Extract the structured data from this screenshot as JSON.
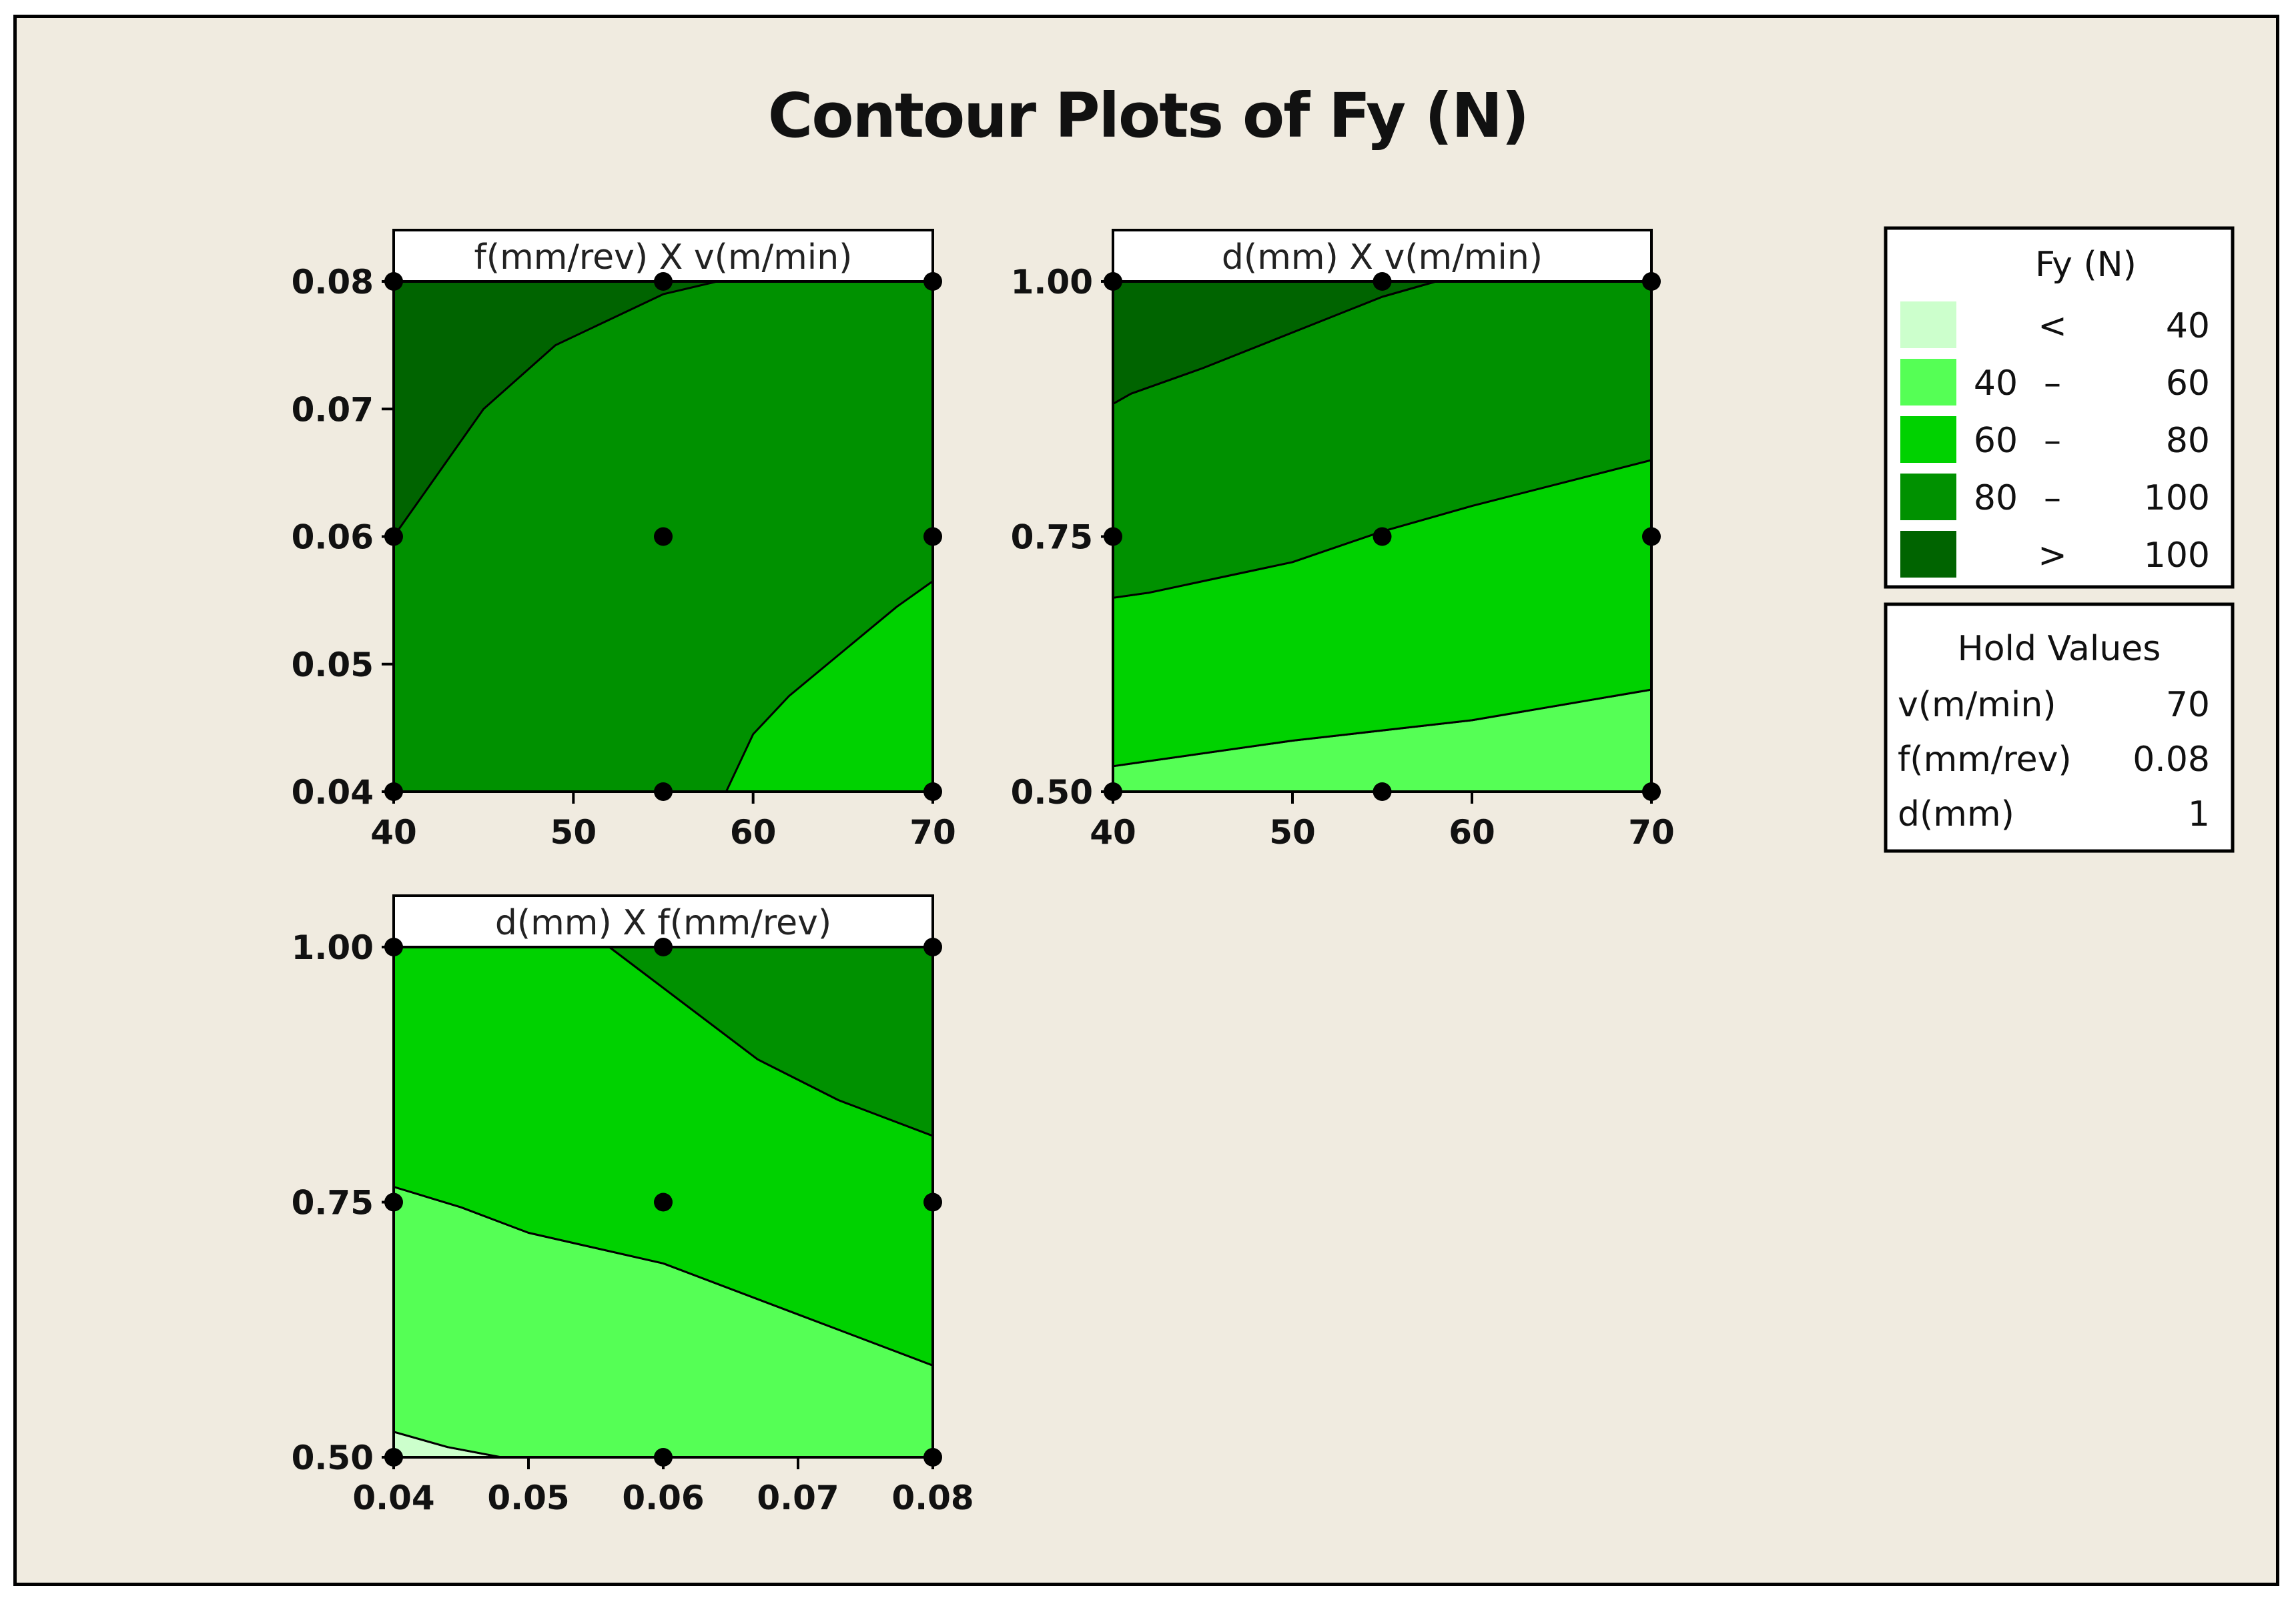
{
  "chart_title": "Contour Plots of Fy (N)",
  "colors": {
    "lt40": "#ccffcc",
    "40-60": "#55ff55",
    "60-80": "#00d200",
    "80-100": "#009100",
    "gt100": "#006400"
  },
  "legend": {
    "title": "Fy (N)",
    "levels": [
      {
        "lo": "",
        "sep": "<",
        "hi": "40",
        "color_key": "lt40"
      },
      {
        "lo": "40",
        "sep": "–",
        "hi": "60",
        "color_key": "40-60"
      },
      {
        "lo": "60",
        "sep": "–",
        "hi": "80",
        "color_key": "60-80"
      },
      {
        "lo": "80",
        "sep": "–",
        "hi": "100",
        "color_key": "80-100"
      },
      {
        "lo": "",
        "sep": ">",
        "hi": "100",
        "color_key": "gt100"
      }
    ]
  },
  "hold_values": {
    "title": "Hold Values",
    "rows": [
      {
        "name": "v(m/min)",
        "value": "70"
      },
      {
        "name": "f(mm/rev)",
        "value": "0.08"
      },
      {
        "name": "d(mm)",
        "value": "1"
      }
    ]
  },
  "chart_data": [
    {
      "type": "contour",
      "title": "f(mm/rev) X v(m/min)",
      "x_ticks": [
        "40",
        "50",
        "60",
        "70"
      ],
      "y_ticks": [
        "0.04",
        "0.05",
        "0.06",
        "0.07",
        "0.08"
      ],
      "xlim": [
        40,
        70
      ],
      "ylim": [
        0.04,
        0.08
      ],
      "design_points": [
        [
          40,
          0.08
        ],
        [
          55,
          0.08
        ],
        [
          70,
          0.08
        ],
        [
          40,
          0.06
        ],
        [
          55,
          0.06
        ],
        [
          70,
          0.06
        ],
        [
          40,
          0.04
        ],
        [
          55,
          0.04
        ],
        [
          70,
          0.04
        ]
      ],
      "regions": [
        {
          "level": "80-100",
          "points": [
            [
              40,
              0.04
            ],
            [
              70,
              0.04
            ],
            [
              70,
              0.08
            ],
            [
              40,
              0.08
            ]
          ]
        },
        {
          "level": "gt100",
          "points": [
            [
              40,
              0.08
            ],
            [
              58,
              0.08
            ],
            [
              55,
              0.079
            ],
            [
              52,
              0.077
            ],
            [
              49,
              0.075
            ],
            [
              45,
              0.07
            ],
            [
              41,
              0.062
            ],
            [
              40,
              0.06
            ]
          ]
        },
        {
          "level": "60-80",
          "points": [
            [
              58.5,
              0.04
            ],
            [
              70,
              0.04
            ],
            [
              70,
              0.0565
            ],
            [
              68,
              0.0545
            ],
            [
              65,
              0.051
            ],
            [
              62,
              0.0475
            ],
            [
              60,
              0.0445
            ]
          ]
        }
      ]
    },
    {
      "type": "contour",
      "title": "d(mm)  X v(m/min)",
      "x_ticks": [
        "40",
        "50",
        "60",
        "70"
      ],
      "y_ticks": [
        "0.50",
        "0.75",
        "1.00"
      ],
      "xlim": [
        40,
        70
      ],
      "ylim": [
        0.5,
        1.0
      ],
      "design_points": [
        [
          40,
          1.0
        ],
        [
          55,
          1.0
        ],
        [
          70,
          1.0
        ],
        [
          40,
          0.75
        ],
        [
          55,
          0.75
        ],
        [
          70,
          0.75
        ],
        [
          40,
          0.5
        ],
        [
          55,
          0.5
        ],
        [
          70,
          0.5
        ]
      ],
      "regions": [
        {
          "level": "40-60",
          "points": [
            [
              40,
              0.5
            ],
            [
              70,
              0.5
            ],
            [
              70,
              0.6
            ],
            [
              60,
              0.57
            ],
            [
              50,
              0.55
            ],
            [
              42,
              0.53
            ],
            [
              40,
              0.525
            ]
          ]
        },
        {
          "level": "60-80",
          "points": [
            [
              40,
              0.525
            ],
            [
              42,
              0.53
            ],
            [
              50,
              0.55
            ],
            [
              60,
              0.57
            ],
            [
              70,
              0.6
            ],
            [
              70,
              0.825
            ],
            [
              60,
              0.78
            ],
            [
              55,
              0.755
            ],
            [
              50,
              0.725
            ],
            [
              42,
              0.695
            ],
            [
              40,
              0.69
            ]
          ]
        },
        {
          "level": "80-100",
          "points": [
            [
              40,
              0.69
            ],
            [
              42,
              0.695
            ],
            [
              50,
              0.725
            ],
            [
              55,
              0.755
            ],
            [
              60,
              0.78
            ],
            [
              70,
              0.825
            ],
            [
              70,
              1.0
            ],
            [
              58,
              1.0
            ],
            [
              55,
              0.985
            ],
            [
              50,
              0.95
            ],
            [
              45,
              0.915
            ],
            [
              41,
              0.89
            ],
            [
              40,
              0.88
            ]
          ]
        },
        {
          "level": "gt100",
          "points": [
            [
              40,
              0.88
            ],
            [
              41,
              0.89
            ],
            [
              45,
              0.915
            ],
            [
              50,
              0.95
            ],
            [
              55,
              0.985
            ],
            [
              58,
              1.0
            ],
            [
              40,
              1.0
            ]
          ]
        }
      ]
    },
    {
      "type": "contour",
      "title": "d(mm) X f(mm/rev)",
      "x_ticks": [
        "0.04",
        "0.05",
        "0.06",
        "0.07",
        "0.08"
      ],
      "y_ticks": [
        "0.50",
        "0.75",
        "1.00"
      ],
      "xlim": [
        0.04,
        0.08
      ],
      "ylim": [
        0.5,
        1.0
      ],
      "design_points": [
        [
          0.04,
          1.0
        ],
        [
          0.06,
          1.0
        ],
        [
          0.08,
          1.0
        ],
        [
          0.04,
          0.75
        ],
        [
          0.06,
          0.75
        ],
        [
          0.08,
          0.75
        ],
        [
          0.04,
          0.5
        ],
        [
          0.06,
          0.5
        ],
        [
          0.08,
          0.5
        ]
      ],
      "regions": [
        {
          "level": "lt40",
          "points": [
            [
              0.04,
              0.5
            ],
            [
              0.048,
              0.5
            ],
            [
              0.044,
              0.51
            ],
            [
              0.04,
              0.525
            ]
          ]
        },
        {
          "level": "40-60",
          "points": [
            [
              0.04,
              0.525
            ],
            [
              0.044,
              0.51
            ],
            [
              0.048,
              0.5
            ],
            [
              0.08,
              0.5
            ],
            [
              0.08,
              0.59
            ],
            [
              0.07,
              0.64
            ],
            [
              0.06,
              0.69
            ],
            [
              0.05,
              0.72
            ],
            [
              0.045,
              0.745
            ],
            [
              0.04,
              0.765
            ]
          ]
        },
        {
          "level": "60-80",
          "points": [
            [
              0.04,
              0.765
            ],
            [
              0.045,
              0.745
            ],
            [
              0.05,
              0.72
            ],
            [
              0.06,
              0.69
            ],
            [
              0.07,
              0.64
            ],
            [
              0.08,
              0.59
            ],
            [
              0.08,
              0.815
            ],
            [
              0.073,
              0.85
            ],
            [
              0.067,
              0.89
            ],
            [
              0.06,
              0.96
            ],
            [
              0.056,
              1.0
            ],
            [
              0.04,
              1.0
            ]
          ]
        },
        {
          "level": "80-100",
          "points": [
            [
              0.056,
              1.0
            ],
            [
              0.06,
              0.96
            ],
            [
              0.067,
              0.89
            ],
            [
              0.073,
              0.85
            ],
            [
              0.08,
              0.815
            ],
            [
              0.08,
              1.0
            ]
          ]
        }
      ]
    }
  ]
}
